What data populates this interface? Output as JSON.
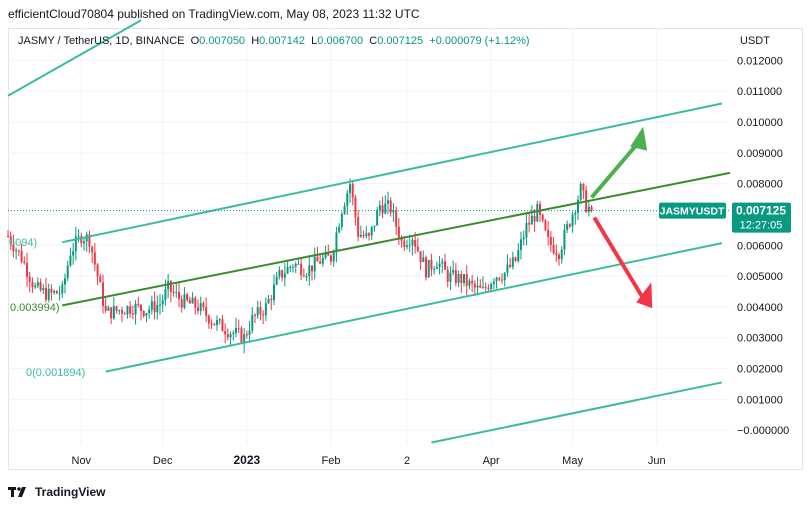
{
  "header": {
    "published": "efficientCloud70804 published on TradingView.com, May 08, 2023 11:32 UTC"
  },
  "legend": {
    "symbol": "JASMY / TetherUS, 1D, BINANCE",
    "open_label": "O",
    "open": "0.007050",
    "high_label": "H",
    "high": "0.007142",
    "low_label": "L",
    "low": "0.006700",
    "close_label": "C",
    "close": "0.007125",
    "change": "+0.000079 (+1.12%)"
  },
  "colors": {
    "up": "#089981",
    "down": "#f23645",
    "channel": "#3bbca0",
    "midline": "#3c8a2e",
    "arrow_up": "#4caf50",
    "arrow_down": "#f23645",
    "price_badge": "#089981"
  },
  "price_badge": {
    "symbol": "JASMYUSDT",
    "price": "0.007125",
    "countdown": "12:27:05"
  },
  "fib_labels": {
    "upper": "6094)",
    "mid": "0.003994)",
    "lower": "0(0.001894)"
  },
  "footer": {
    "brand": "TradingView"
  },
  "chart_data": {
    "type": "candlestick",
    "title": "JASMY / TetherUS, 1D, BINANCE",
    "y_axis_label": "USDT",
    "y_ticks": [
      "0.012000",
      "0.011000",
      "0.010000",
      "0.009000",
      "0.008000",
      "0.007000",
      "0.006000",
      "0.005000",
      "0.004000",
      "0.003000",
      "0.002000",
      "0.001000",
      "−0.000000"
    ],
    "y_tick_values": [
      0.012,
      0.011,
      0.01,
      0.009,
      0.008,
      0.007,
      0.006,
      0.005,
      0.004,
      0.003,
      0.002,
      0.001,
      0.0
    ],
    "x_ticks": [
      "Nov",
      "Dec",
      "2023",
      "Feb",
      "2",
      "Apr",
      "May",
      "Jun"
    ],
    "x_tick_dates": [
      "2022-11-01",
      "2022-12-01",
      "2023-01-01",
      "2023-02-01",
      "2023-03-01",
      "2023-04-01",
      "2023-05-01",
      "2023-06-01"
    ],
    "x_range": [
      "2022-10-05",
      "2023-06-28"
    ],
    "y_range": [
      -0.00048,
      0.01305
    ],
    "grid": true,
    "last_price": 0.007125,
    "close_series": [
      {
        "date": "2022-10-05",
        "close": 0.0063
      },
      {
        "date": "2022-10-10",
        "close": 0.0056
      },
      {
        "date": "2022-10-15",
        "close": 0.0046
      },
      {
        "date": "2022-10-20",
        "close": 0.0044
      },
      {
        "date": "2022-10-25",
        "close": 0.0045
      },
      {
        "date": "2022-10-28",
        "close": 0.0058
      },
      {
        "date": "2022-11-01",
        "close": 0.0063
      },
      {
        "date": "2022-11-04",
        "close": 0.0062
      },
      {
        "date": "2022-11-08",
        "close": 0.0046
      },
      {
        "date": "2022-11-10",
        "close": 0.0038
      },
      {
        "date": "2022-11-15",
        "close": 0.0039
      },
      {
        "date": "2022-11-20",
        "close": 0.004
      },
      {
        "date": "2022-11-25",
        "close": 0.0039
      },
      {
        "date": "2022-11-30",
        "close": 0.0041
      },
      {
        "date": "2022-12-03",
        "close": 0.0046
      },
      {
        "date": "2022-12-08",
        "close": 0.0042
      },
      {
        "date": "2022-12-14",
        "close": 0.004
      },
      {
        "date": "2022-12-20",
        "close": 0.0035
      },
      {
        "date": "2022-12-26",
        "close": 0.0032
      },
      {
        "date": "2022-12-31",
        "close": 0.003
      },
      {
        "date": "2023-01-03",
        "close": 0.0036
      },
      {
        "date": "2023-01-08",
        "close": 0.004
      },
      {
        "date": "2023-01-13",
        "close": 0.005
      },
      {
        "date": "2023-01-18",
        "close": 0.0054
      },
      {
        "date": "2023-01-23",
        "close": 0.0052
      },
      {
        "date": "2023-01-28",
        "close": 0.0055
      },
      {
        "date": "2023-02-01",
        "close": 0.0056
      },
      {
        "date": "2023-02-05",
        "close": 0.0072
      },
      {
        "date": "2023-02-08",
        "close": 0.008
      },
      {
        "date": "2023-02-11",
        "close": 0.0064
      },
      {
        "date": "2023-02-15",
        "close": 0.0062
      },
      {
        "date": "2023-02-19",
        "close": 0.0073
      },
      {
        "date": "2023-02-23",
        "close": 0.0072
      },
      {
        "date": "2023-02-27",
        "close": 0.0061
      },
      {
        "date": "2023-03-03",
        "close": 0.0063
      },
      {
        "date": "2023-03-08",
        "close": 0.0052
      },
      {
        "date": "2023-03-12",
        "close": 0.0055
      },
      {
        "date": "2023-03-16",
        "close": 0.005
      },
      {
        "date": "2023-03-21",
        "close": 0.0049
      },
      {
        "date": "2023-03-26",
        "close": 0.0046
      },
      {
        "date": "2023-03-29",
        "close": 0.0045
      },
      {
        "date": "2023-04-02",
        "close": 0.005
      },
      {
        "date": "2023-04-06",
        "close": 0.0051
      },
      {
        "date": "2023-04-10",
        "close": 0.0055
      },
      {
        "date": "2023-04-14",
        "close": 0.0066
      },
      {
        "date": "2023-04-18",
        "close": 0.0071
      },
      {
        "date": "2023-04-22",
        "close": 0.0061
      },
      {
        "date": "2023-04-26",
        "close": 0.0058
      },
      {
        "date": "2023-04-30",
        "close": 0.0068
      },
      {
        "date": "2023-05-04",
        "close": 0.0078
      },
      {
        "date": "2023-05-06",
        "close": 0.0073
      },
      {
        "date": "2023-05-08",
        "close": 0.007125
      }
    ]
  }
}
